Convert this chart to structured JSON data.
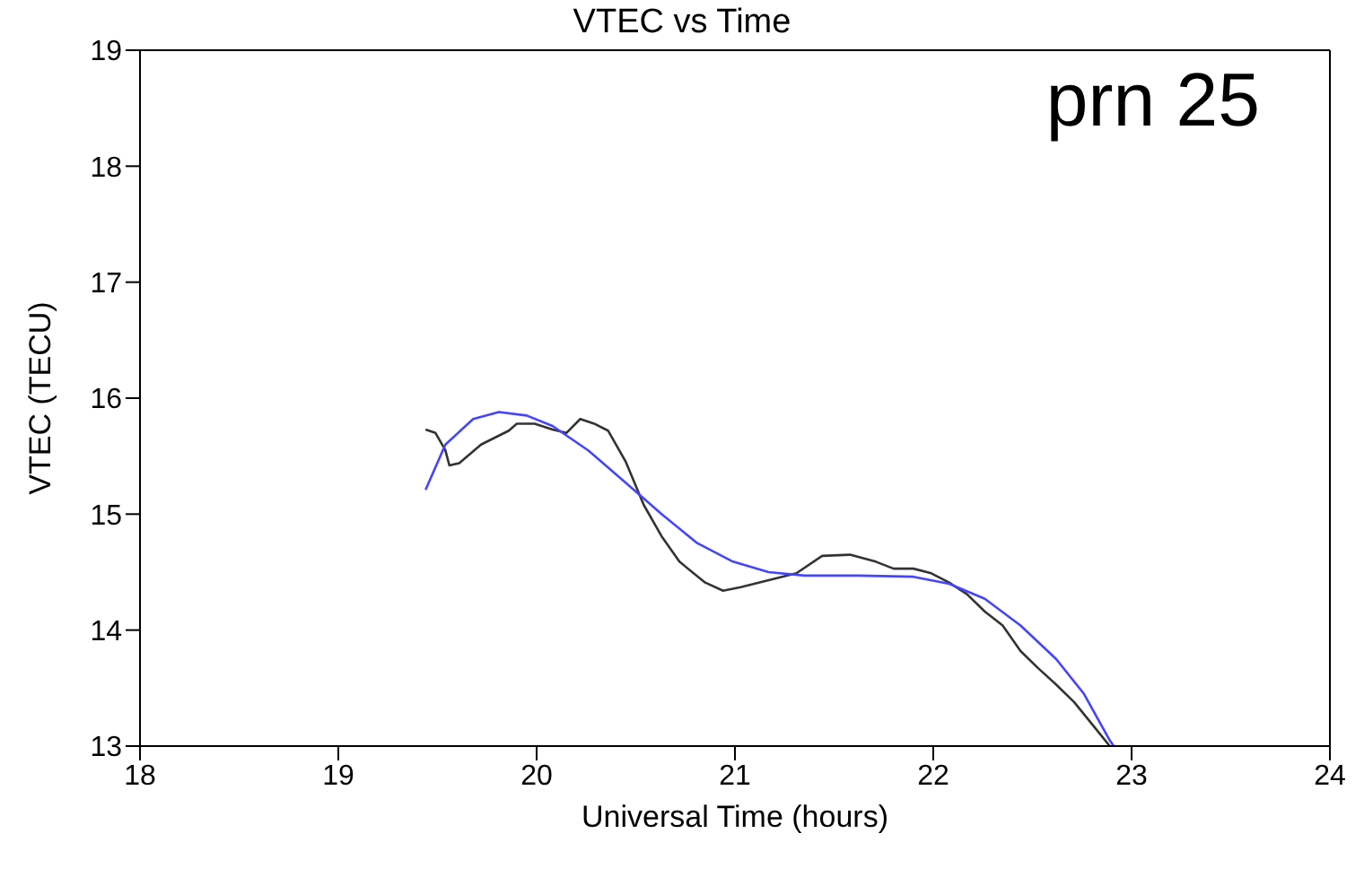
{
  "chart_data": {
    "type": "line",
    "title": "VTEC vs Time",
    "xlabel": "Universal Time (hours)",
    "ylabel": "VTEC (TECU)",
    "annotations": [
      "prn 25"
    ],
    "xlim": [
      18,
      24
    ],
    "xticks": [
      18,
      19,
      20,
      21,
      22,
      23,
      24
    ],
    "ylim": [
      13,
      19
    ],
    "yticks": [
      13,
      14,
      15,
      16,
      17,
      18,
      19
    ],
    "legend": false,
    "marker": "none",
    "line_style": "solid",
    "series": [
      {
        "color": "#333333",
        "x": [
          19.44,
          19.49,
          19.54,
          19.56,
          19.61,
          19.72,
          19.86,
          19.9,
          19.99,
          20.08,
          20.15,
          20.22,
          20.29,
          20.36,
          20.45,
          20.54,
          20.63,
          20.72,
          20.85,
          20.94,
          21.03,
          21.17,
          21.31,
          21.44,
          21.58,
          21.71,
          21.8,
          21.9,
          21.99,
          22.08,
          22.17,
          22.26,
          22.35,
          22.44,
          22.53,
          22.62,
          22.71,
          22.8,
          22.89
        ],
        "values": [
          15.73,
          15.7,
          15.55,
          15.42,
          15.44,
          15.6,
          15.72,
          15.78,
          15.78,
          15.73,
          15.7,
          15.82,
          15.78,
          15.72,
          15.45,
          15.08,
          14.81,
          14.59,
          14.41,
          14.34,
          14.37,
          14.43,
          14.49,
          14.64,
          14.65,
          14.59,
          14.53,
          14.53,
          14.49,
          14.41,
          14.31,
          14.16,
          14.04,
          13.82,
          13.67,
          13.53,
          13.38,
          13.19,
          13.0
        ]
      },
      {
        "color": "#4444ff",
        "x": [
          19.44,
          19.54,
          19.68,
          19.81,
          19.95,
          20.08,
          20.26,
          20.45,
          20.63,
          20.81,
          20.99,
          21.17,
          21.35,
          21.62,
          21.9,
          22.08,
          22.26,
          22.44,
          22.62,
          22.76,
          22.89,
          22.91
        ],
        "values": [
          15.21,
          15.6,
          15.82,
          15.88,
          15.85,
          15.76,
          15.55,
          15.27,
          15.0,
          14.75,
          14.59,
          14.5,
          14.47,
          14.47,
          14.46,
          14.4,
          14.27,
          14.04,
          13.75,
          13.45,
          13.05,
          13.0
        ]
      }
    ]
  }
}
